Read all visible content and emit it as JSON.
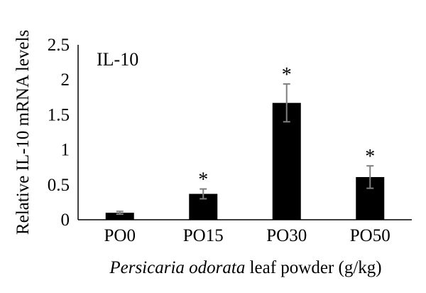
{
  "chart_data": {
    "type": "bar",
    "panel_label": "IL-10",
    "ylabel": "Relative IL-10 mRNA levels",
    "xlabel": {
      "italic": "Persicaria odorata",
      "rest": " leaf powder (g/kg)"
    },
    "categories": [
      "PO0",
      "PO15",
      "PO30",
      "PO50"
    ],
    "values": [
      0.1,
      0.37,
      1.67,
      0.61
    ],
    "errors": [
      0.02,
      0.07,
      0.27,
      0.16
    ],
    "significance": [
      "",
      "*",
      "*",
      "*"
    ],
    "ylim": [
      0,
      2.5
    ],
    "yticks": [
      0,
      0.5,
      1,
      1.5,
      2,
      2.5
    ],
    "ytick_labels": [
      "0",
      "0.5",
      "1",
      "1.5",
      "2",
      "2.5"
    ],
    "grid": false,
    "colors": {
      "bar": "#000000",
      "error_bar": "#7f7f7f",
      "axis": "#000000"
    }
  }
}
